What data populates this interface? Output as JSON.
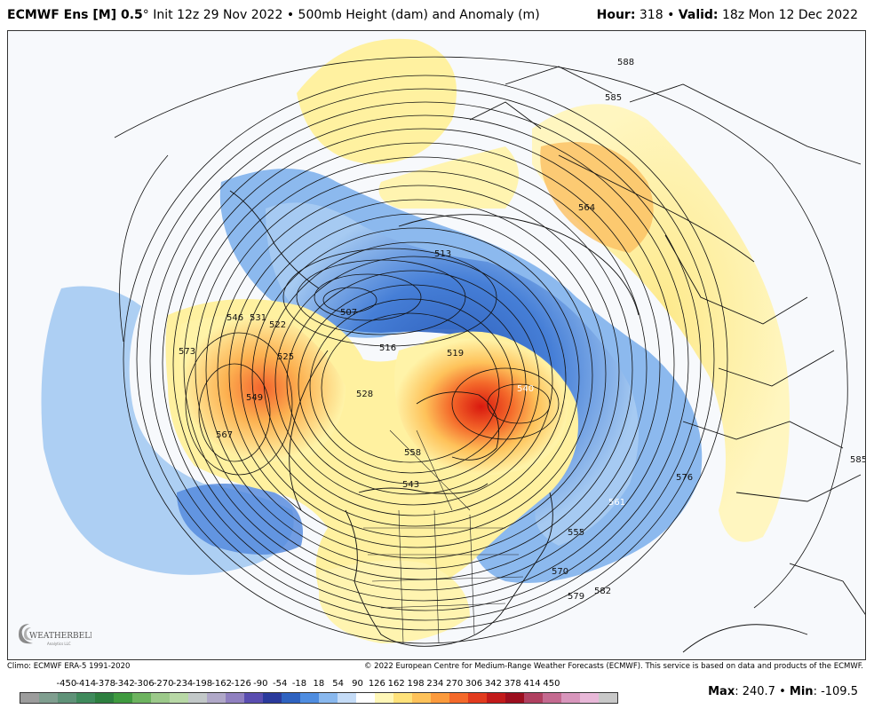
{
  "header": {
    "model": "ECMWF Ens [M] 0.5",
    "degree": "°",
    "init": "Init 12z 29 Nov 2022",
    "bullet": "•",
    "product": "500mb Height (dam) and Anomaly (m)",
    "hour_label": "Hour:",
    "hour": "318",
    "valid_label": "Valid:",
    "valid": "18z Mon 12 Dec 2022"
  },
  "map": {
    "contour_labels": [
      "588",
      "585",
      "564",
      "513",
      "507",
      "516",
      "519",
      "540",
      "546",
      "531",
      "522",
      "525",
      "549",
      "573",
      "567",
      "558",
      "543",
      "576",
      "561",
      "555",
      "570",
      "579",
      "582",
      "585",
      "585",
      "528"
    ],
    "logo_text": "WEATHERBELL",
    "logo_sub": "Analytics LLC"
  },
  "footer": {
    "climo": "Climo: ECMWF ERA-5 1991-2020",
    "copyright": "© 2022 European Centre for Medium-Range Weather Forecasts (ECMWF). This service is based on data and products of the ECMWF."
  },
  "scale": {
    "labels": [
      "-450",
      "-414",
      "-378",
      "-342",
      "-306",
      "-270",
      "-234",
      "-198",
      "-162",
      "-126",
      "-90",
      "-54",
      "-18",
      "18",
      "54",
      "90",
      "126",
      "162",
      "198",
      "234",
      "270",
      "306",
      "342",
      "378",
      "414",
      "450"
    ],
    "colors": [
      "#9c9c9c",
      "#7f9e8f",
      "#5f9278",
      "#3f8a5c",
      "#2d7f3f",
      "#3f9a3f",
      "#6db35f",
      "#9cc98a",
      "#b8d8a6",
      "#c2c8c8",
      "#b0a8c8",
      "#9080c0",
      "#5a4db0",
      "#2a3a9c",
      "#2e62c0",
      "#4f8de0",
      "#89b8ee",
      "#c5dcf7",
      "#ffffff",
      "#fff7b8",
      "#ffe27a",
      "#fec25a",
      "#fb9a3c",
      "#f4692a",
      "#e23b1e",
      "#c21a1a",
      "#9c0e1e",
      "#b04060",
      "#c46a90",
      "#d896bc",
      "#e8b8d8",
      "#c8c8c8"
    ],
    "max_label": "Max",
    "max": "240.7",
    "min_label": "Min",
    "min": "-109.5",
    "sep": "•"
  }
}
